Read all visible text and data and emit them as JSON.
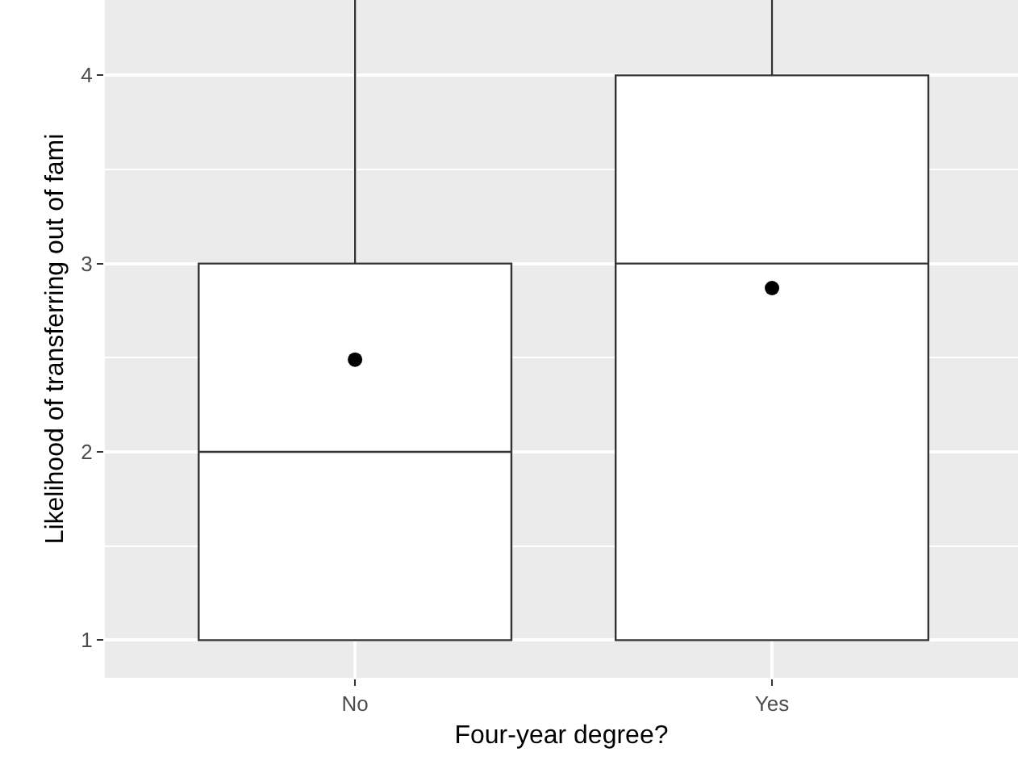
{
  "chart_data": {
    "type": "box",
    "xlabel": "Four-year degree?",
    "ylabel": "Likelihood of transferring out of fami",
    "categories": [
      "No",
      "Yes"
    ],
    "boxes": [
      {
        "low": 1,
        "q1": 1,
        "median": 2,
        "q3": 3,
        "high": 4.4,
        "mean": 2.49
      },
      {
        "low": 1,
        "q1": 1,
        "median": 3,
        "q3": 4,
        "high": 4.4,
        "mean": 2.87
      }
    ],
    "ylim": [
      0.8,
      4.4
    ],
    "yticks": [
      1,
      2,
      3,
      4
    ],
    "grid": true
  }
}
